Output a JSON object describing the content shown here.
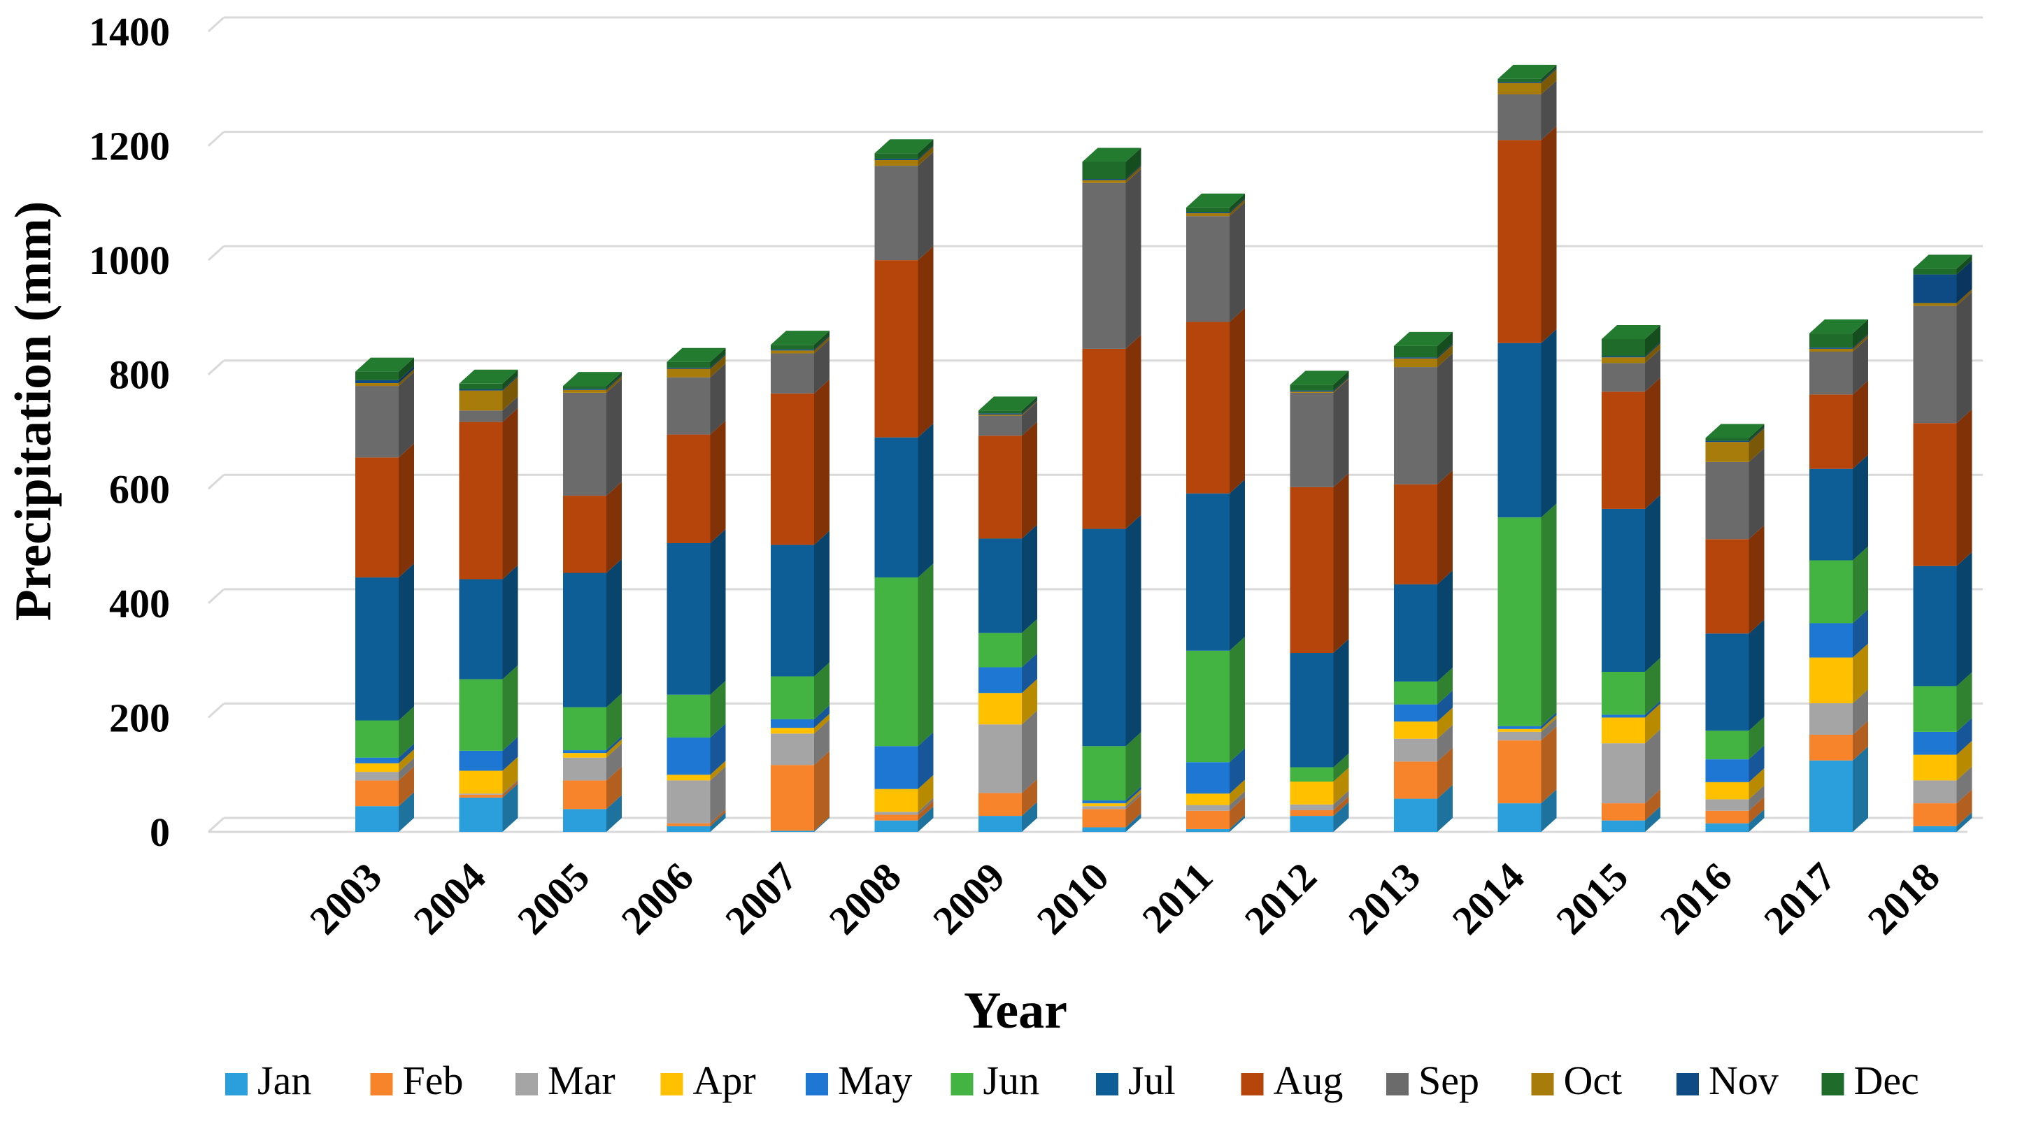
{
  "chart_data": {
    "type": "bar",
    "stacked": true,
    "title": "",
    "xlabel": "Year",
    "ylabel": "Precipitation (mm)",
    "ylim": [
      0,
      1400
    ],
    "yticks": [
      0,
      200,
      400,
      600,
      800,
      1000,
      1200,
      1400
    ],
    "grid": true,
    "legend_position": "bottom",
    "categories": [
      "2003",
      "2004",
      "2005",
      "2006",
      "2007",
      "2008",
      "2009",
      "2010",
      "2011",
      "2012",
      "2013",
      "2014",
      "2015",
      "2016",
      "2017",
      "2018"
    ],
    "series": [
      {
        "name": "Jan",
        "color": "#2A9FDB",
        "values": [
          45,
          60,
          40,
          10,
          2,
          20,
          28,
          8,
          5,
          28,
          58,
          50,
          20,
          15,
          125,
          10
        ]
      },
      {
        "name": "Feb",
        "color": "#F7842B",
        "values": [
          45,
          5,
          50,
          5,
          115,
          10,
          40,
          32,
          32,
          10,
          65,
          110,
          30,
          22,
          45,
          40
        ]
      },
      {
        "name": "Mar",
        "color": "#A5A5A5",
        "values": [
          15,
          2,
          40,
          75,
          55,
          5,
          120,
          5,
          10,
          10,
          40,
          15,
          105,
          20,
          55,
          40
        ]
      },
      {
        "name": "Apr",
        "color": "#FFC000",
        "values": [
          15,
          40,
          8,
          10,
          10,
          40,
          55,
          5,
          20,
          40,
          30,
          5,
          45,
          30,
          80,
          45
        ]
      },
      {
        "name": "May",
        "color": "#1F77D4",
        "values": [
          10,
          35,
          5,
          65,
          15,
          75,
          45,
          5,
          55,
          0,
          30,
          5,
          5,
          40,
          60,
          40
        ]
      },
      {
        "name": "Jun",
        "color": "#43B342",
        "values": [
          65,
          125,
          75,
          75,
          75,
          295,
          60,
          95,
          195,
          25,
          40,
          365,
          75,
          50,
          110,
          80
        ]
      },
      {
        "name": "Jul",
        "color": "#0D5E96",
        "values": [
          250,
          175,
          235,
          265,
          230,
          245,
          165,
          380,
          275,
          200,
          170,
          305,
          285,
          170,
          160,
          210
        ]
      },
      {
        "name": "Aug",
        "color": "#B5450A",
        "values": [
          210,
          275,
          135,
          190,
          265,
          310,
          180,
          315,
          300,
          290,
          175,
          355,
          205,
          165,
          130,
          250
        ]
      },
      {
        "name": "Sep",
        "color": "#6B6B6B",
        "values": [
          125,
          20,
          180,
          100,
          70,
          165,
          35,
          290,
          185,
          165,
          205,
          80,
          50,
          135,
          75,
          205
        ]
      },
      {
        "name": "Oct",
        "color": "#A87C0A",
        "values": [
          5,
          35,
          5,
          15,
          5,
          10,
          2,
          5,
          5,
          2,
          15,
          20,
          10,
          35,
          5,
          5
        ]
      },
      {
        "name": "Nov",
        "color": "#0E4A84",
        "values": [
          5,
          2,
          2,
          2,
          2,
          2,
          2,
          2,
          2,
          2,
          2,
          2,
          2,
          2,
          2,
          50
        ]
      },
      {
        "name": "Dec",
        "color": "#1E6B2A",
        "values": [
          15,
          10,
          5,
          10,
          8,
          10,
          5,
          30,
          8,
          10,
          20,
          5,
          30,
          5,
          25,
          10
        ]
      }
    ]
  }
}
